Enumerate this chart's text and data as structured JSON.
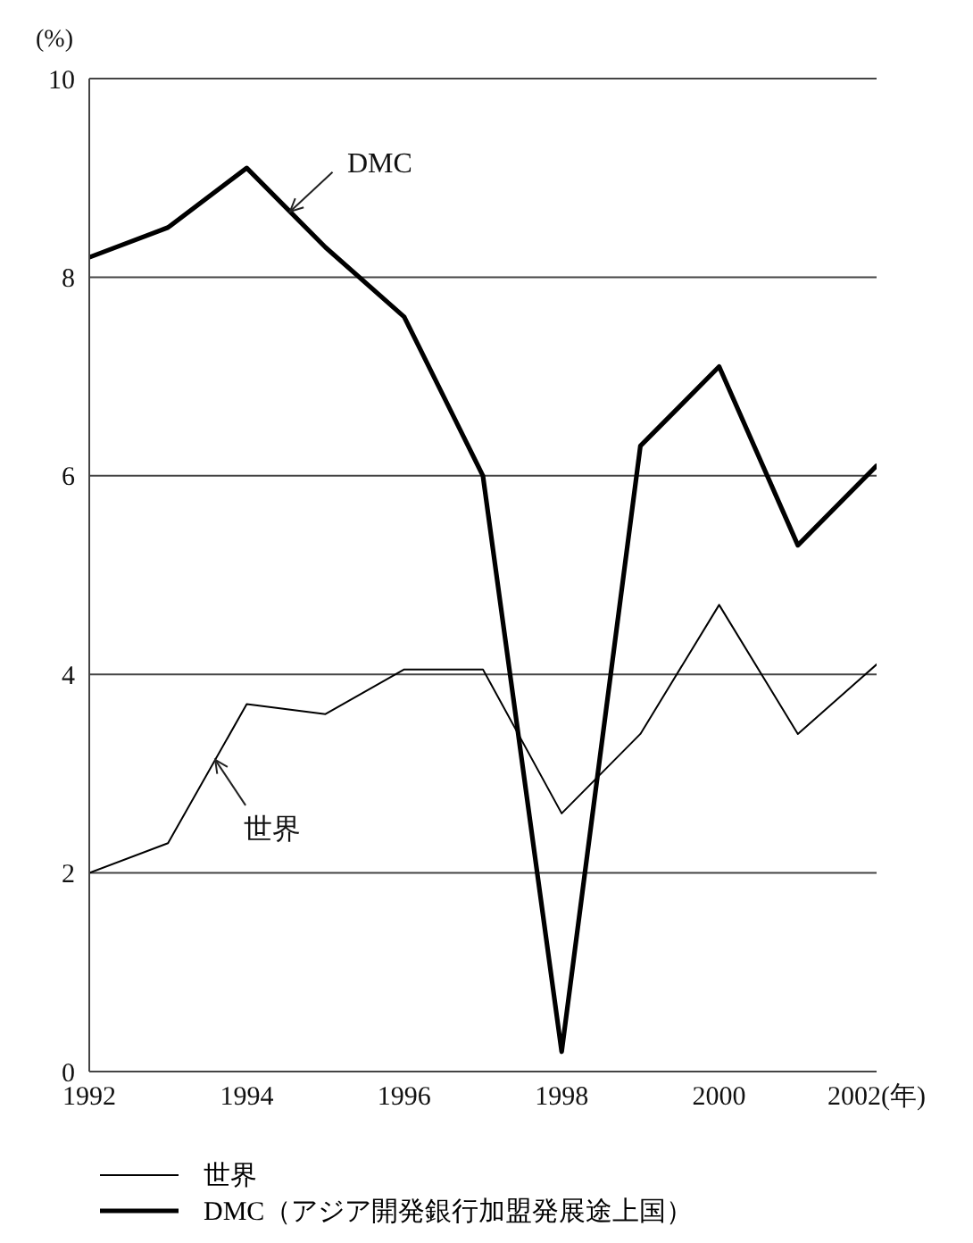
{
  "chart_data": {
    "type": "line",
    "ylabel": "(%)",
    "x": [
      1992,
      1993,
      1994,
      1995,
      1996,
      1997,
      1998,
      1999,
      2000,
      2001,
      2002
    ],
    "series": [
      {
        "name": "世界",
        "color": "#000000",
        "values": [
          2.0,
          2.3,
          3.7,
          3.6,
          4.05,
          4.05,
          2.6,
          3.4,
          4.7,
          3.4,
          4.1
        ]
      },
      {
        "name": "DMC（アジア開発銀行加盟発展途上国）",
        "color": "#000000",
        "values": [
          8.2,
          8.5,
          9.1,
          8.3,
          7.6,
          6.0,
          0.2,
          6.3,
          7.1,
          5.3,
          6.1
        ]
      }
    ],
    "xlim": [
      1992,
      2002
    ],
    "xticks": [
      1992,
      1994,
      1996,
      1998,
      2000,
      {
        "value": 2002,
        "label": "2002(年)"
      }
    ],
    "ylim": [
      0,
      10
    ],
    "yticks": [
      0,
      2,
      4,
      6,
      8,
      10
    ],
    "grid": "y",
    "legend": "bottom",
    "marker": "none",
    "line_style": "solid",
    "annotations": [
      "DMC",
      "世界"
    ]
  }
}
